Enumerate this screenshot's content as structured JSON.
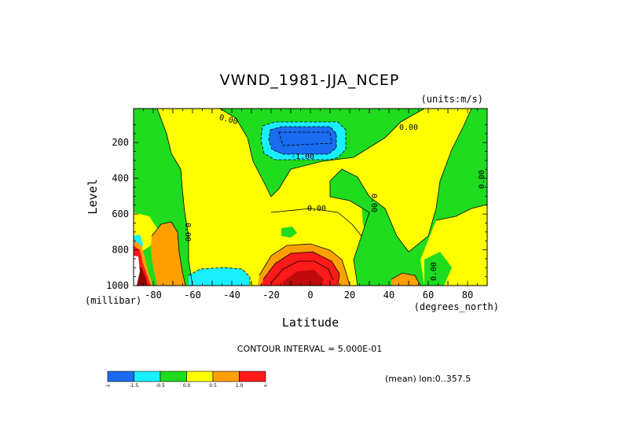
{
  "chart_data": {
    "type": "heatmap",
    "title": "VWND_1981-JJA_NCEP",
    "units_label": "(units:m/s)",
    "xlabel": "Latitude",
    "x_units": "(degrees_north)",
    "ylabel": "Level",
    "y_units": "(millibar)",
    "x_ticks": [
      "-80",
      "-60",
      "-40",
      "-20",
      "0",
      "20",
      "40",
      "60",
      "80"
    ],
    "x_tick_values": [
      -80,
      -60,
      -40,
      -20,
      0,
      20,
      40,
      60,
      80
    ],
    "y_ticks": [
      "200",
      "400",
      "600",
      "800",
      "1000"
    ],
    "y_tick_values": [
      200,
      400,
      600,
      800,
      1000
    ],
    "xlim": [
      -90,
      90
    ],
    "ylim": [
      1000,
      10
    ],
    "contour_interval": "CONTOUR INTERVAL = 5.000E-01",
    "mean_label": "(mean) lon:0..357.5",
    "contour_labels": [
      "0.00",
      "0.00",
      "-1.00",
      "0.00",
      "0.00",
      "0.00",
      "0.00",
      "0.00",
      "0.00"
    ],
    "colorbar": {
      "colors": [
        "#1a6cf0",
        "#19f0ff",
        "#1fdc1f",
        "#ffff00",
        "#ffa000",
        "#ff1a1a"
      ],
      "labels": [
        "-∞",
        "-1.5",
        "-0.5",
        "0.0",
        "0.5",
        "1.0",
        "∞"
      ]
    },
    "regions": [
      {
        "level": "negative_strong",
        "color": "#1a6cf0",
        "note": "upper troposphere jet near -10 to 10 lat, 150-250 mb"
      },
      {
        "level": "negative_weak",
        "color": "#19f0ff"
      },
      {
        "level": "near_zero_negative",
        "color": "#1fdc1f"
      },
      {
        "level": "near_zero_positive",
        "color": "#ffff00"
      },
      {
        "level": "positive_weak",
        "color": "#ffa000"
      },
      {
        "level": "positive_strong",
        "color": "#ff1a1a"
      }
    ]
  }
}
